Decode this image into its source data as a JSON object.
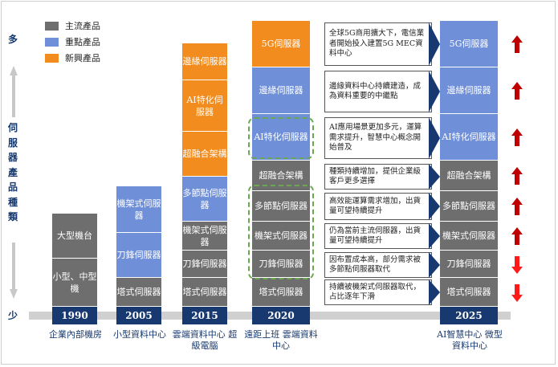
{
  "legend": [
    {
      "label": "主流產品",
      "color": "#6e6e6e"
    },
    {
      "label": "重點產品",
      "color": "#6f8fd8"
    },
    {
      "label": "新興產品",
      "color": "#f28c1e"
    }
  ],
  "axis": {
    "top_label": "多",
    "bottom_label": "少",
    "vertical_title": "伺服器產品種類"
  },
  "columns": [
    {
      "year": "1990",
      "footer": "企業內部機房",
      "cells": [
        "大型機台",
        "小型、中型機"
      ]
    },
    {
      "year": "2005",
      "footer": "小型資料中心",
      "cells": [
        "機架式伺服器",
        "刀鋒伺服器",
        "塔式伺服器"
      ]
    },
    {
      "year": "2015",
      "footer": "雲端資料中心 超級電腦",
      "cells": [
        "邊緣伺服器",
        "AI特化伺服器",
        "超融合架構",
        "多節點伺服器",
        "機架式伺服器",
        "刀鋒伺服器",
        "塔式伺服器"
      ]
    },
    {
      "year": "2020",
      "footer": "遠距上班 雲端資料中心",
      "cells": [
        "5G伺服器",
        "邊緣伺服器",
        "AI特化伺服器",
        "超融合架構",
        "多節點伺服器",
        "機架式伺服器",
        "刀鋒伺服器",
        "塔式伺服器"
      ]
    },
    {
      "year": "2025",
      "footer": "AI智慧中心 微型資料中心",
      "cells": [
        "5G伺服器",
        "邊緣伺服器",
        "AI特化伺服器",
        "超融合架構",
        "多節點伺服器",
        "機架式伺服器",
        "刀鋒伺服器",
        "塔式伺服器"
      ]
    }
  ],
  "notes": [
    "全球5G商用擴大下，電信業者開始投入建置5G MEC資料中心",
    "邊緣資料中心持續建造，成為資料重要的中繼點",
    "AI應用場景更加多元，運算需求提升，智慧中心概念開始普及",
    "種類持續增加，提供企業級客戶更多選擇",
    "高效能運算需求增加，出貨量可望持續提升",
    "仍為當前主流伺服器，出貨量可望持續提升",
    "因布置成本高，部分需求被多節點伺服器取代",
    "持續被機架式伺服器取代，占比逐年下滑"
  ],
  "trends": [
    "up",
    "up",
    "up",
    "up",
    "up",
    "up",
    "down",
    "down"
  ],
  "colors": {
    "gray": "#6e6e6e",
    "blue": "#6f8fd8",
    "orange": "#f28c1e",
    "navy": "#17396f",
    "red": "#c00000",
    "dash": "#6aa84f"
  }
}
